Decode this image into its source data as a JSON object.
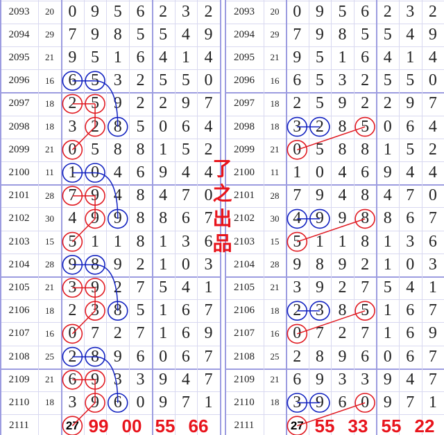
{
  "rows": [
    {
      "issue": "2093",
      "sum": "20",
      "digits": [
        "0",
        "9",
        "5",
        "6",
        "2",
        "3",
        "2"
      ]
    },
    {
      "issue": "2094",
      "sum": "29",
      "digits": [
        "7",
        "9",
        "8",
        "5",
        "5",
        "4",
        "9"
      ]
    },
    {
      "issue": "2095",
      "sum": "21",
      "digits": [
        "9",
        "5",
        "1",
        "6",
        "4",
        "1",
        "4"
      ]
    },
    {
      "issue": "2096",
      "sum": "16",
      "digits": [
        "6",
        "5",
        "3",
        "2",
        "5",
        "5",
        "0"
      ]
    },
    {
      "issue": "2097",
      "sum": "18",
      "digits": [
        "2",
        "5",
        "9",
        "2",
        "2",
        "9",
        "7"
      ]
    },
    {
      "issue": "2098",
      "sum": "18",
      "digits": [
        "3",
        "2",
        "8",
        "5",
        "0",
        "6",
        "4"
      ]
    },
    {
      "issue": "2099",
      "sum": "21",
      "digits": [
        "0",
        "5",
        "8",
        "8",
        "1",
        "5",
        "2"
      ]
    },
    {
      "issue": "2100",
      "sum": "11",
      "digits": [
        "1",
        "0",
        "4",
        "6",
        "9",
        "4",
        "4"
      ]
    },
    {
      "issue": "2101",
      "sum": "28",
      "digits": [
        "7",
        "9",
        "4",
        "8",
        "4",
        "7",
        "0"
      ]
    },
    {
      "issue": "2102",
      "sum": "30",
      "digits": [
        "4",
        "9",
        "9",
        "8",
        "8",
        "6",
        "7"
      ]
    },
    {
      "issue": "2103",
      "sum": "15",
      "digits": [
        "5",
        "1",
        "1",
        "8",
        "1",
        "3",
        "6"
      ]
    },
    {
      "issue": "2104",
      "sum": "28",
      "digits": [
        "9",
        "8",
        "9",
        "2",
        "1",
        "0",
        "3"
      ]
    },
    {
      "issue": "2105",
      "sum": "21",
      "digits": [
        "3",
        "9",
        "2",
        "7",
        "5",
        "4",
        "1"
      ]
    },
    {
      "issue": "2106",
      "sum": "18",
      "digits": [
        "2",
        "3",
        "8",
        "5",
        "1",
        "6",
        "7"
      ]
    },
    {
      "issue": "2107",
      "sum": "16",
      "digits": [
        "0",
        "7",
        "2",
        "7",
        "1",
        "6",
        "9"
      ]
    },
    {
      "issue": "2108",
      "sum": "25",
      "digits": [
        "2",
        "8",
        "9",
        "6",
        "0",
        "6",
        "7"
      ]
    },
    {
      "issue": "2109",
      "sum": "21",
      "digits": [
        "6",
        "9",
        "3",
        "3",
        "9",
        "4",
        "7"
      ]
    },
    {
      "issue": "2110",
      "sum": "18",
      "digits": [
        "3",
        "9",
        "6",
        "0",
        "9",
        "7",
        "1"
      ]
    },
    {
      "issue": "2111",
      "sum": "",
      "digits": [
        "",
        "",
        "",
        "",
        "",
        "",
        ""
      ]
    }
  ],
  "next_prediction": "27",
  "title": "了之出品",
  "colors": {
    "red": "#e01820",
    "blue": "#1020c0",
    "grid": "#d8d8f0",
    "grid_thick": "#9c9ce0"
  },
  "left_labels": [
    "99",
    "00",
    "55",
    "66"
  ],
  "right_labels": [
    "55",
    "33",
    "55",
    "22"
  ],
  "left_marks": [
    {
      "color": "blue",
      "cells": [
        [
          3,
          0
        ],
        [
          3,
          1
        ]
      ],
      "links": [
        [
          [
            3,
            0
          ],
          [
            3,
            1
          ]
        ],
        [
          [
            3,
            1
          ],
          [
            5,
            2
          ],
          "curve"
        ]
      ]
    },
    {
      "color": "red",
      "cells": [
        [
          4,
          0
        ],
        [
          4,
          1
        ],
        [
          5,
          1
        ],
        [
          6,
          0
        ]
      ],
      "links": [
        [
          [
            4,
            0
          ],
          [
            4,
            1
          ]
        ],
        [
          [
            4,
            1
          ],
          [
            5,
            1
          ]
        ],
        [
          [
            5,
            1
          ],
          [
            6,
            0
          ]
        ]
      ]
    },
    {
      "color": "blue",
      "cells": [
        [
          5,
          2
        ]
      ],
      "links": []
    },
    {
      "color": "blue",
      "cells": [
        [
          7,
          0
        ],
        [
          7,
          1
        ],
        [
          9,
          2
        ]
      ],
      "links": [
        [
          [
            7,
            0
          ],
          [
            7,
            1
          ]
        ],
        [
          [
            7,
            1
          ],
          [
            9,
            2
          ],
          "curve"
        ]
      ]
    },
    {
      "color": "red",
      "cells": [
        [
          8,
          0
        ],
        [
          8,
          1
        ],
        [
          9,
          1
        ],
        [
          10,
          0
        ]
      ],
      "links": [
        [
          [
            8,
            0
          ],
          [
            8,
            1
          ]
        ],
        [
          [
            8,
            1
          ],
          [
            9,
            1
          ]
        ],
        [
          [
            9,
            1
          ],
          [
            10,
            0
          ]
        ]
      ]
    },
    {
      "color": "blue",
      "cells": [
        [
          11,
          0
        ],
        [
          11,
          1
        ],
        [
          13,
          2
        ]
      ],
      "links": [
        [
          [
            11,
            0
          ],
          [
            11,
            1
          ]
        ],
        [
          [
            11,
            1
          ],
          [
            13,
            2
          ],
          "curve"
        ]
      ]
    },
    {
      "color": "red",
      "cells": [
        [
          12,
          0
        ],
        [
          12,
          1
        ],
        [
          13,
          1
        ],
        [
          14,
          0
        ]
      ],
      "links": [
        [
          [
            12,
            0
          ],
          [
            12,
            1
          ]
        ],
        [
          [
            12,
            1
          ],
          [
            13,
            1
          ]
        ],
        [
          [
            13,
            1
          ],
          [
            14,
            0
          ]
        ]
      ]
    },
    {
      "color": "blue",
      "cells": [
        [
          15,
          0
        ],
        [
          15,
          1
        ],
        [
          17,
          2
        ]
      ],
      "links": [
        [
          [
            15,
            0
          ],
          [
            15,
            1
          ]
        ],
        [
          [
            15,
            1
          ],
          [
            17,
            2
          ],
          "curve"
        ]
      ]
    },
    {
      "color": "red",
      "cells": [
        [
          16,
          0
        ],
        [
          16,
          1
        ],
        [
          17,
          1
        ],
        [
          18,
          0
        ]
      ],
      "links": [
        [
          [
            16,
            0
          ],
          [
            16,
            1
          ]
        ],
        [
          [
            16,
            1
          ],
          [
            17,
            1
          ]
        ],
        [
          [
            17,
            1
          ],
          [
            18,
            0
          ]
        ]
      ]
    }
  ],
  "right_marks": [
    {
      "color": "blue",
      "cells": [
        [
          5,
          0
        ],
        [
          5,
          1
        ]
      ],
      "links": [
        [
          [
            5,
            0
          ],
          [
            5,
            1
          ]
        ]
      ]
    },
    {
      "color": "red",
      "cells": [
        [
          5,
          3
        ],
        [
          6,
          0
        ]
      ],
      "links": [
        [
          [
            5,
            3
          ],
          [
            6,
            0
          ]
        ]
      ]
    },
    {
      "color": "blue",
      "cells": [
        [
          9,
          0
        ],
        [
          9,
          1
        ]
      ],
      "links": [
        [
          [
            9,
            0
          ],
          [
            9,
            1
          ]
        ]
      ]
    },
    {
      "color": "red",
      "cells": [
        [
          9,
          3
        ],
        [
          10,
          0
        ]
      ],
      "links": [
        [
          [
            9,
            3
          ],
          [
            10,
            0
          ]
        ]
      ]
    },
    {
      "color": "blue",
      "cells": [
        [
          13,
          0
        ],
        [
          13,
          1
        ]
      ],
      "links": [
        [
          [
            13,
            0
          ],
          [
            13,
            1
          ]
        ]
      ]
    },
    {
      "color": "red",
      "cells": [
        [
          13,
          3
        ],
        [
          14,
          0
        ]
      ],
      "links": [
        [
          [
            13,
            3
          ],
          [
            14,
            0
          ]
        ]
      ]
    },
    {
      "color": "blue",
      "cells": [
        [
          17,
          0
        ],
        [
          17,
          1
        ]
      ],
      "links": [
        [
          [
            17,
            0
          ],
          [
            17,
            1
          ]
        ]
      ]
    },
    {
      "color": "red",
      "cells": [
        [
          17,
          3
        ],
        [
          18,
          0
        ]
      ],
      "links": [
        [
          [
            17,
            3
          ],
          [
            18,
            0
          ]
        ]
      ]
    }
  ]
}
